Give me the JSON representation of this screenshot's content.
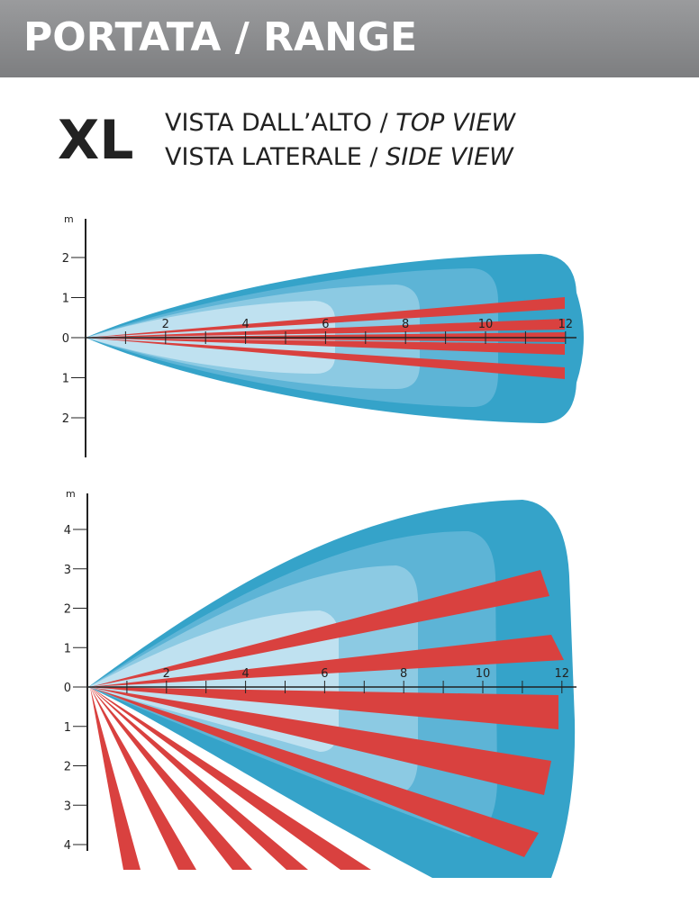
{
  "header": {
    "title": "PORTATA / RANGE"
  },
  "model": "XL",
  "views": [
    {
      "label": "VISTA DALL’ALTO / ",
      "label_italic": "TOP VIEW"
    },
    {
      "label": "VISTA LATERALE / ",
      "label_italic": "SIDE VIEW"
    }
  ],
  "top_view": {
    "unit": "m",
    "xticks": [
      2,
      4,
      6,
      8,
      10,
      12
    ],
    "yticks": [
      2,
      1,
      0,
      {
        "value": -1,
        "label": "1"
      },
      {
        "value": -2,
        "label": "2"
      }
    ]
  },
  "side_view": {
    "unit": "m",
    "xticks": [
      2,
      4,
      6,
      8,
      10,
      12
    ],
    "yticks": [
      4,
      3,
      2,
      1,
      0,
      {
        "value": -1,
        "label": "1"
      },
      {
        "value": -2,
        "label": "2"
      },
      {
        "value": -3,
        "label": "3"
      },
      {
        "value": -4,
        "label": "4"
      }
    ]
  }
}
